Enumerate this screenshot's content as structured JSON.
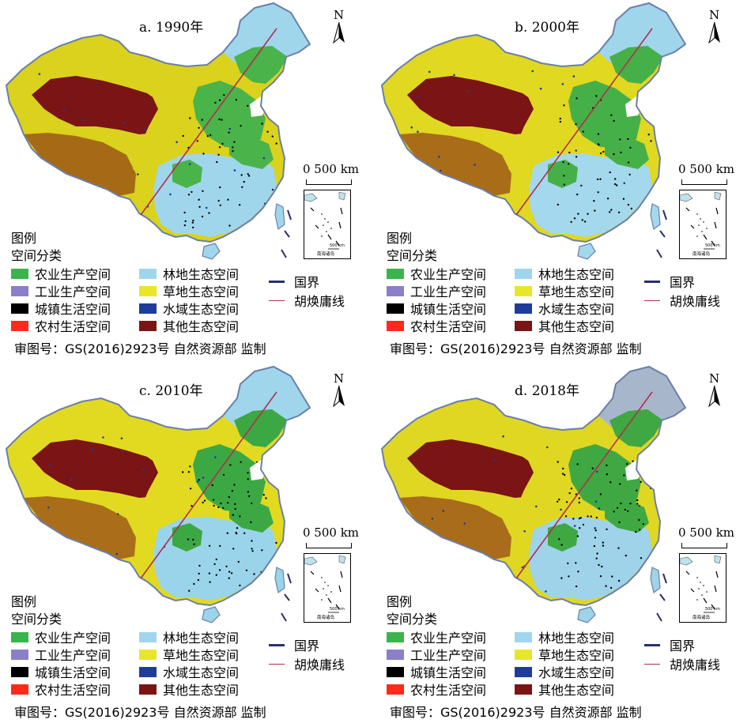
{
  "panels": [
    {
      "title": "a. 1990年"
    },
    {
      "title": "b. 2000年"
    },
    {
      "title": "c. 2010年"
    },
    {
      "title": "d. 2018年"
    }
  ],
  "map_common": {
    "north_label": "N",
    "scale_label": "0  500 km",
    "inset_scale": "500 km",
    "inset_label": "南海诸岛",
    "legend_title": "图例",
    "legend_subtitle": "空间分类",
    "classes": [
      {
        "label": "农业生产空间",
        "color": "#3cb44b"
      },
      {
        "label": "工业生产空间",
        "color": "#8a7fc8"
      },
      {
        "label": "城镇生活空间",
        "color": "#000000"
      },
      {
        "label": "农村生活空间",
        "color": "#ff2a1a"
      },
      {
        "label": "林地生态空间",
        "color": "#9fd6ec"
      },
      {
        "label": "草地生态空间",
        "color": "#e8e628"
      },
      {
        "label": "水域生态空间",
        "color": "#1e3c9c"
      },
      {
        "label": "其他生态空间",
        "color": "#7b1414"
      }
    ],
    "lines": [
      {
        "label": "国界",
        "color": "#2b2f6b"
      },
      {
        "label": "胡焕庸线",
        "color": "#b0304a"
      }
    ],
    "approval": "审图号：GS(2016)2923号    自然资源部 监制"
  }
}
